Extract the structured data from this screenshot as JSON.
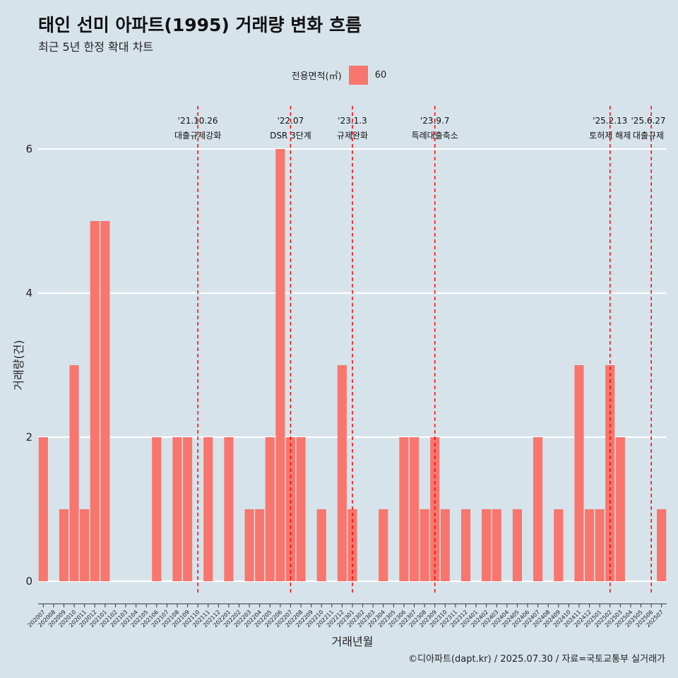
{
  "title": "태인 선미 아파트(1995) 거래량 변화 흐름",
  "subtitle": "최근 5년 한정 확대 차트",
  "caption": "©디아파트(dapt.kr) / 2025.07.30 / 자료=국토교통부 실거래가",
  "legend": {
    "title": "전용면적(㎡)",
    "items": [
      {
        "label": "60",
        "color": "#f8766d"
      }
    ]
  },
  "chart_data": {
    "type": "bar",
    "xlabel": "거래년월",
    "ylabel": "거래량(건)",
    "ylim": [
      0,
      6
    ],
    "yticks": [
      0,
      2,
      4,
      6
    ],
    "grid": true,
    "legend_position": "top",
    "bar_color": "#f8766d",
    "categories": [
      "202007",
      "202008",
      "202009",
      "202010",
      "202011",
      "202012",
      "202101",
      "202102",
      "202103",
      "202104",
      "202105",
      "202106",
      "202107",
      "202108",
      "202109",
      "202110",
      "202111",
      "202112",
      "202201",
      "202202",
      "202203",
      "202204",
      "202205",
      "202206",
      "202207",
      "202208",
      "202209",
      "202210",
      "202211",
      "202212",
      "202301",
      "202302",
      "202303",
      "202304",
      "202305",
      "202306",
      "202307",
      "202308",
      "202309",
      "202310",
      "202311",
      "202312",
      "202401",
      "202402",
      "202403",
      "202404",
      "202405",
      "202406",
      "202407",
      "202408",
      "202409",
      "202410",
      "202411",
      "202412",
      "202501",
      "202502",
      "202503",
      "202504",
      "202505",
      "202506",
      "202507"
    ],
    "series": [
      {
        "values": [
          2,
          0,
          1,
          3,
          1,
          5,
          5,
          0,
          0,
          0,
          0,
          2,
          0,
          2,
          2,
          0,
          2,
          0,
          2,
          0,
          1,
          1,
          2,
          6,
          2,
          2,
          0,
          1,
          0,
          3,
          1,
          0,
          0,
          1,
          0,
          2,
          2,
          1,
          2,
          1,
          0,
          1,
          0,
          1,
          1,
          0,
          1,
          0,
          2,
          0,
          1,
          0,
          3,
          1,
          1,
          3,
          2,
          0,
          0,
          0,
          1
        ]
      }
    ],
    "annotations": [
      {
        "x": "202110",
        "date": "'21.10.26",
        "label": "대출규제강화"
      },
      {
        "x": "202207",
        "date": "'22.07",
        "label": "DSR 3단계"
      },
      {
        "x": "202301",
        "date": "'23.1.3",
        "label": "규제완화"
      },
      {
        "x": "202309",
        "date": "'23.9.7",
        "label": "특례대출축소"
      },
      {
        "x": "202502",
        "date": "'25.2.13",
        "label": "토허제 해제"
      },
      {
        "x": "202506",
        "date": "'25.6.27",
        "label": "대출규제"
      }
    ]
  }
}
